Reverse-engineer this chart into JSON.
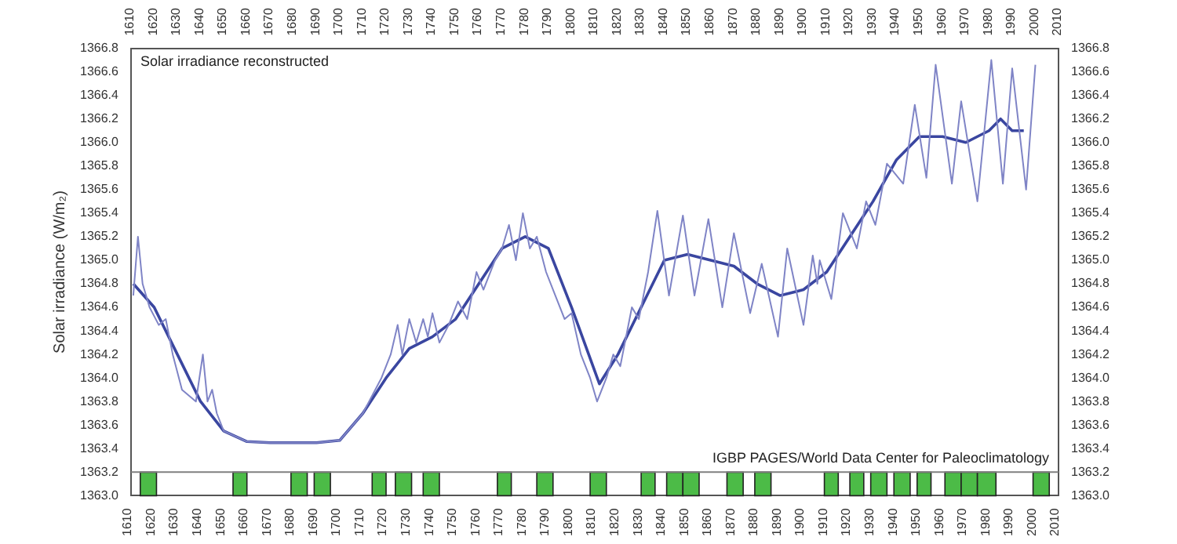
{
  "chart_data": {
    "type": "line",
    "title": "Solar irradiance reconstructed",
    "ylabel": "Solar irradiance (W/m₂)",
    "annotations": [
      "IGBP PAGES/World Data Center for Paleoclimatology"
    ],
    "xlim": [
      1610,
      2010
    ],
    "xticks": [
      1610,
      1620,
      1630,
      1640,
      1650,
      1660,
      1670,
      1680,
      1690,
      1700,
      1710,
      1720,
      1730,
      1740,
      1750,
      1760,
      1770,
      1780,
      1790,
      1800,
      1810,
      1820,
      1830,
      1840,
      1850,
      1860,
      1870,
      1880,
      1890,
      1900,
      1910,
      1920,
      1930,
      1940,
      1950,
      1960,
      1970,
      1980,
      1990,
      2000,
      2010
    ],
    "x2lim": [
      1610,
      2010
    ],
    "x2ticks": [
      1610,
      1620,
      1630,
      1640,
      1650,
      1660,
      1670,
      1680,
      1690,
      1700,
      1710,
      1720,
      1730,
      1740,
      1750,
      1760,
      1770,
      1780,
      1790,
      1800,
      1810,
      1820,
      1830,
      1840,
      1850,
      1860,
      1870,
      1880,
      1890,
      1900,
      1910,
      1920,
      1930,
      1940,
      1950,
      1960,
      1970,
      1980,
      1990,
      2000,
      2010
    ],
    "ylim": [
      1363.0,
      1366.8
    ],
    "yticks": [
      {
        "value": 1363.0,
        "label": "1363.0"
      },
      1363.2,
      1363.4,
      1363.6,
      1363.8,
      {
        "value": 1364.0,
        "label": "1364.0"
      },
      1364.2,
      1364.4,
      1364.6,
      1364.8,
      {
        "value": 1365.0,
        "label": "1365.0"
      },
      1365.2,
      1365.4,
      1365.6,
      1365.8,
      {
        "value": 1366.0,
        "label": "1366.0"
      },
      1366.2,
      1366.4,
      1366.6,
      1366.8
    ],
    "y2lim": [
      1363.0,
      1366.8
    ],
    "y2ticks": [
      {
        "value": 1363.0,
        "label": "1363.0"
      },
      1363.2,
      1363.4,
      1363.6,
      1363.8,
      {
        "value": 1364.0,
        "label": "1364.0"
      },
      1364.2,
      1364.4,
      1364.6,
      1364.8,
      {
        "value": 1365.0,
        "label": "1365.0"
      },
      1365.2,
      1365.4,
      1365.6,
      1365.8,
      {
        "value": 1366.0,
        "label": "1366.0"
      },
      1366.2,
      1366.4,
      1366.6,
      1366.8
    ],
    "grid": false,
    "legend": false,
    "marker": "none",
    "line_style": "solid",
    "ref_lines": [
      {
        "axis": "y",
        "value": 1363.2,
        "color": "#808080"
      }
    ],
    "bands": [
      {
        "axis": "x",
        "from": 1614,
        "to": 1621,
        "color": "#4cbb47"
      },
      {
        "axis": "x",
        "from": 1654,
        "to": 1660,
        "color": "#4cbb47"
      },
      {
        "axis": "x",
        "from": 1679,
        "to": 1686,
        "color": "#4cbb47"
      },
      {
        "axis": "x",
        "from": 1689,
        "to": 1696,
        "color": "#4cbb47"
      },
      {
        "axis": "x",
        "from": 1714,
        "to": 1720,
        "color": "#4cbb47"
      },
      {
        "axis": "x",
        "from": 1724,
        "to": 1731,
        "color": "#4cbb47"
      },
      {
        "axis": "x",
        "from": 1736,
        "to": 1743,
        "color": "#4cbb47"
      },
      {
        "axis": "x",
        "from": 1768,
        "to": 1774,
        "color": "#4cbb47"
      },
      {
        "axis": "x",
        "from": 1785,
        "to": 1792,
        "color": "#4cbb47"
      },
      {
        "axis": "x",
        "from": 1808,
        "to": 1815,
        "color": "#4cbb47"
      },
      {
        "axis": "x",
        "from": 1830,
        "to": 1836,
        "color": "#4cbb47"
      },
      {
        "axis": "x",
        "from": 1841,
        "to": 1848,
        "color": "#4cbb47"
      },
      {
        "axis": "x",
        "from": 1848,
        "to": 1855,
        "color": "#4cbb47"
      },
      {
        "axis": "x",
        "from": 1867,
        "to": 1874,
        "color": "#4cbb47"
      },
      {
        "axis": "x",
        "from": 1879,
        "to": 1886,
        "color": "#4cbb47"
      },
      {
        "axis": "x",
        "from": 1909,
        "to": 1915,
        "color": "#4cbb47"
      },
      {
        "axis": "x",
        "from": 1920,
        "to": 1926,
        "color": "#4cbb47"
      },
      {
        "axis": "x",
        "from": 1929,
        "to": 1936,
        "color": "#4cbb47"
      },
      {
        "axis": "x",
        "from": 1939,
        "to": 1946,
        "color": "#4cbb47"
      },
      {
        "axis": "x",
        "from": 1949,
        "to": 1955,
        "color": "#4cbb47"
      },
      {
        "axis": "x",
        "from": 1961,
        "to": 1968,
        "color": "#4cbb47"
      },
      {
        "axis": "x",
        "from": 1968,
        "to": 1975,
        "color": "#4cbb47"
      },
      {
        "axis": "x",
        "from": 1975,
        "to": 1983,
        "color": "#4cbb47"
      },
      {
        "axis": "x",
        "from": 1999,
        "to": 2006,
        "color": "#4cbb47"
      }
    ],
    "series": [
      {
        "color": "#7f84c6",
        "x": [
          1611,
          1613,
          1615,
          1618,
          1622,
          1625,
          1628,
          1632,
          1635,
          1638,
          1641,
          1643,
          1645,
          1647,
          1650,
          1660,
          1670,
          1680,
          1690,
          1700,
          1710,
          1718,
          1722,
          1725,
          1727,
          1730,
          1733,
          1736,
          1738,
          1740,
          1743,
          1747,
          1751,
          1755,
          1759,
          1762,
          1767,
          1770,
          1773,
          1776,
          1779,
          1782,
          1785,
          1789,
          1793,
          1797,
          1800,
          1804,
          1808,
          1811,
          1815,
          1818,
          1821,
          1826,
          1829,
          1833,
          1837,
          1842,
          1848,
          1853,
          1859,
          1865,
          1870,
          1877,
          1882,
          1889,
          1893,
          1900,
          1904,
          1906,
          1907,
          1912,
          1917,
          1923,
          1927,
          1931,
          1936,
          1943,
          1948,
          1953,
          1957,
          1964,
          1968,
          1975,
          1981,
          1986,
          1990,
          1996,
          2000
        ],
        "values": [
          1364.7,
          1365.2,
          1364.8,
          1364.6,
          1364.45,
          1364.5,
          1364.2,
          1363.9,
          1363.85,
          1363.8,
          1364.2,
          1363.8,
          1363.9,
          1363.7,
          1363.55,
          1363.46,
          1363.45,
          1363.45,
          1363.45,
          1363.47,
          1363.7,
          1364.0,
          1364.2,
          1364.45,
          1364.2,
          1364.5,
          1364.3,
          1364.5,
          1364.35,
          1364.55,
          1364.3,
          1364.45,
          1364.65,
          1364.5,
          1364.9,
          1364.75,
          1365.0,
          1365.1,
          1365.3,
          1365.0,
          1365.4,
          1365.1,
          1365.2,
          1364.9,
          1364.7,
          1364.5,
          1364.55,
          1364.2,
          1364.0,
          1363.8,
          1364.0,
          1364.2,
          1364.1,
          1364.6,
          1364.5,
          1364.9,
          1365.42,
          1364.7,
          1365.38,
          1364.7,
          1365.35,
          1364.6,
          1365.23,
          1364.55,
          1364.97,
          1364.35,
          1365.1,
          1364.45,
          1365.04,
          1364.8,
          1365.0,
          1364.67,
          1365.4,
          1365.1,
          1365.5,
          1365.3,
          1365.82,
          1365.65,
          1366.32,
          1365.7,
          1366.66,
          1365.65,
          1366.35,
          1365.5,
          1366.7,
          1365.65,
          1366.63,
          1365.6,
          1366.66
        ]
      },
      {
        "color": "#3a46a0",
        "x": [
          1611,
          1620,
          1630,
          1640,
          1650,
          1660,
          1670,
          1680,
          1690,
          1700,
          1710,
          1720,
          1730,
          1740,
          1750,
          1760,
          1770,
          1780,
          1790,
          1800,
          1812,
          1820,
          1830,
          1840,
          1850,
          1860,
          1870,
          1880,
          1890,
          1900,
          1910,
          1920,
          1930,
          1940,
          1950,
          1960,
          1970,
          1980,
          1985,
          1990,
          1995
        ],
        "values": [
          1364.8,
          1364.6,
          1364.2,
          1363.8,
          1363.55,
          1363.46,
          1363.45,
          1363.45,
          1363.45,
          1363.47,
          1363.7,
          1364.0,
          1364.25,
          1364.35,
          1364.5,
          1364.8,
          1365.1,
          1365.2,
          1365.1,
          1364.6,
          1363.95,
          1364.2,
          1364.6,
          1365.0,
          1365.05,
          1365.0,
          1364.95,
          1364.8,
          1364.7,
          1364.75,
          1364.9,
          1365.2,
          1365.5,
          1365.85,
          1366.05,
          1366.05,
          1366.0,
          1366.1,
          1366.2,
          1366.1,
          1366.1
        ]
      }
    ]
  }
}
